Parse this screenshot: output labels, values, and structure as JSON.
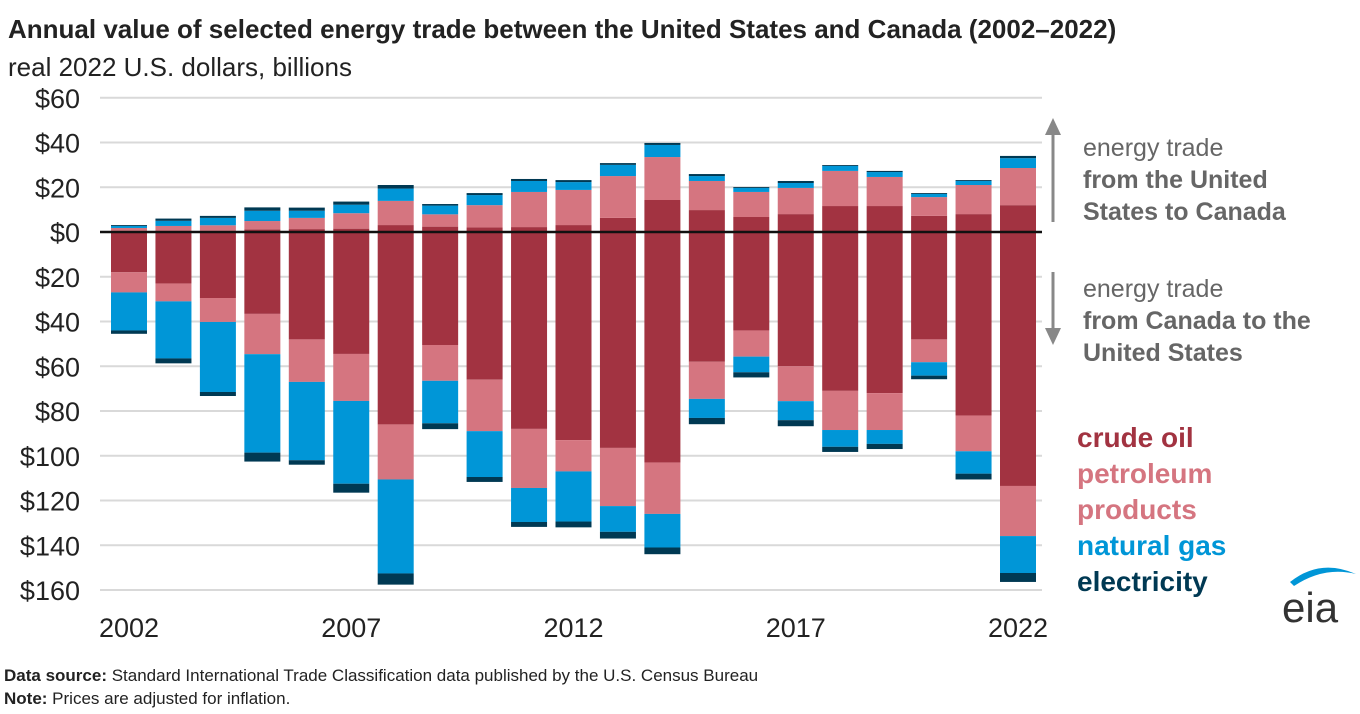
{
  "title": "Annual value of selected energy trade between the United States and Canada (2002–2022)",
  "subtitle": "real 2022 U.S. dollars, billions",
  "annotations": {
    "exports_line1": "energy trade",
    "exports_line2": "from the United",
    "exports_line3": "States to Canada",
    "imports_line1": "energy trade",
    "imports_line2": "from Canada to the",
    "imports_line3": "United States"
  },
  "legend": {
    "crude_oil": "crude oil",
    "petroleum_1": "petroleum",
    "petroleum_2": "products",
    "natural_gas": "natural gas",
    "electricity": "electricity"
  },
  "footer": {
    "source_label": "Data source:",
    "source_text": " Standard International Trade Classification data published by the U.S. Census Bureau",
    "note_label": "Note:",
    "note_text": " Prices are adjusted for inflation."
  },
  "logo": "eia",
  "chart_data": {
    "type": "bar",
    "stacked": true,
    "title": "Annual value of selected energy trade between the United States and Canada (2002–2022)",
    "ylabel": "real 2022 U.S. dollars, billions",
    "ylim": [
      -160,
      60
    ],
    "yticks": [
      60,
      40,
      20,
      0,
      -20,
      -40,
      -60,
      -80,
      -100,
      -120,
      -140,
      -160
    ],
    "ytick_labels": [
      "$60",
      "$40",
      "$20",
      "$0",
      "$20",
      "$40",
      "$60",
      "$80",
      "$100",
      "$120",
      "$140",
      "$160"
    ],
    "xtick_labels": [
      "2002",
      "2007",
      "2012",
      "2017",
      "2022"
    ],
    "grid": true,
    "legend_position": "right",
    "categories": [
      2002,
      2003,
      2004,
      2005,
      2006,
      2007,
      2008,
      2009,
      2010,
      2011,
      2012,
      2013,
      2014,
      2015,
      2016,
      2017,
      2018,
      2019,
      2020,
      2021,
      2022
    ],
    "colors": {
      "crude_oil": "#a23341",
      "petroleum_products": "#d57580",
      "natural_gas": "#0096d7",
      "electricity": "#003953"
    },
    "series": [
      {
        "name": "crude oil",
        "key": "crude_oil",
        "exports": [
          0.5,
          0.3,
          0.5,
          1.2,
          1.3,
          1.5,
          3.1,
          2.4,
          2,
          2.2,
          3.1,
          6.3,
          14.3,
          9.8,
          6.7,
          8,
          11.6,
          11.6,
          7.2,
          8,
          12
        ],
        "imports": [
          18,
          23,
          29.5,
          36.6,
          48,
          54.5,
          86,
          50.5,
          66,
          88,
          93,
          96.5,
          103,
          58,
          44,
          60,
          71,
          72,
          48,
          82,
          113.5
        ]
      },
      {
        "name": "petroleum products",
        "key": "petroleum_products",
        "exports": [
          1.3,
          2.4,
          2.5,
          3.7,
          5,
          6.9,
          10.8,
          5.5,
          10,
          15.7,
          15.7,
          18.7,
          19.2,
          13,
          11.2,
          11.7,
          15.7,
          13,
          8.4,
          13,
          16.6
        ],
        "imports": [
          9,
          8,
          10.7,
          18,
          19,
          21,
          24.6,
          16,
          23,
          26.4,
          14,
          26,
          23,
          16.6,
          11.7,
          15.6,
          17.5,
          16.5,
          10.2,
          16,
          22.4
        ]
      },
      {
        "name": "natural gas",
        "key": "natural_gas",
        "exports": [
          0.9,
          2.3,
          3.3,
          4.6,
          3.2,
          3.8,
          5.5,
          3.9,
          4.5,
          4.9,
          3.5,
          5,
          5.4,
          2.2,
          1.8,
          2.2,
          2.2,
          2.2,
          1.4,
          1.8,
          4.4
        ],
        "imports": [
          17,
          25.5,
          31.3,
          44,
          35,
          37,
          42,
          19,
          20.5,
          15.2,
          22.4,
          11.5,
          15,
          8.5,
          7,
          8.5,
          7.5,
          6.2,
          6,
          10,
          16.5
        ]
      },
      {
        "name": "electricity",
        "key": "electricity",
        "exports": [
          0.4,
          1,
          0.9,
          1.5,
          1.4,
          1.4,
          1.6,
          0.7,
          0.9,
          0.9,
          0.9,
          0.8,
          0.9,
          0.9,
          0.4,
          0.9,
          0.4,
          0.5,
          0.4,
          0.4,
          1
        ],
        "imports": [
          1.5,
          2.2,
          1.8,
          4,
          2,
          4,
          5,
          2.6,
          2.2,
          2.2,
          2.6,
          3,
          3,
          2.8,
          2.3,
          2.7,
          2.3,
          2.3,
          1.6,
          2.6,
          4
        ]
      }
    ]
  }
}
